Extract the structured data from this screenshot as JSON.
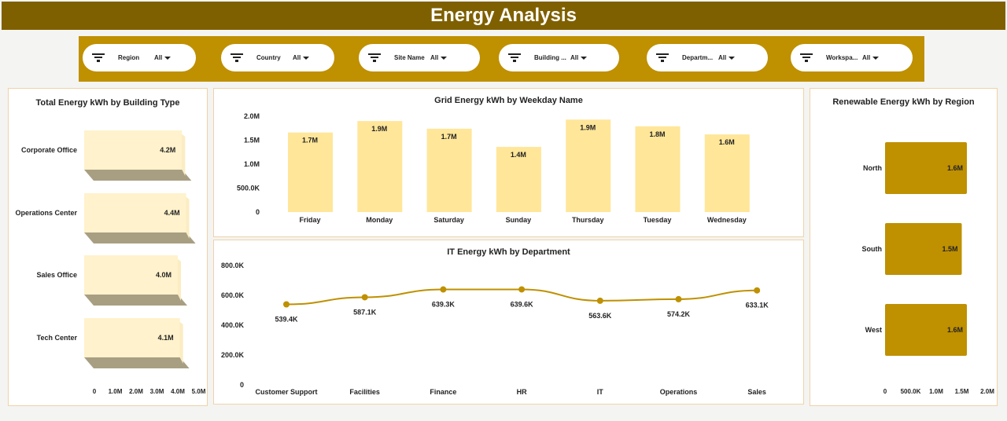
{
  "header": {
    "title": "Energy Analysis"
  },
  "filters": [
    {
      "label": "Region",
      "value": "All",
      "icon": "filter-icon"
    },
    {
      "label": "Country",
      "value": "All",
      "icon": "filter-icon"
    },
    {
      "label": "Site Name",
      "value": "All",
      "icon": "filter-icon"
    },
    {
      "label": "Building ...",
      "value": "All",
      "icon": "filter-icon"
    },
    {
      "label": "Departm...",
      "value": "All",
      "icon": "filter-icon"
    },
    {
      "label": "Workspa...",
      "value": "All",
      "icon": "filter-icon"
    }
  ],
  "colors": {
    "header": "#7f6000",
    "filterbar": "#bf9000",
    "bar_light": "#ffe699",
    "bar_3d": "#fff2cc",
    "accent": "#bf9000"
  },
  "chart_data": [
    {
      "id": "building",
      "type": "bar",
      "orientation": "horizontal",
      "style": "3d",
      "title": "Total Energy kWh by Building Type",
      "categories": [
        "Corporate Office",
        "Operations Center",
        "Sales Office",
        "Tech Center"
      ],
      "values": [
        4.2,
        4.4,
        4.0,
        4.1
      ],
      "data_labels": [
        "4.2M",
        "4.4M",
        "4.0M",
        "4.1M"
      ],
      "xlim": [
        0,
        5
      ],
      "xticks": [
        "0",
        "1.0M",
        "2.0M",
        "3.0M",
        "4.0M",
        "5.0M"
      ]
    },
    {
      "id": "grid",
      "type": "bar",
      "title": "Grid Energy kWh by Weekday Name",
      "categories": [
        "Friday",
        "Monday",
        "Saturday",
        "Sunday",
        "Thursday",
        "Tuesday",
        "Wednesday"
      ],
      "values": [
        1.66,
        1.9,
        1.74,
        1.36,
        1.93,
        1.79,
        1.62
      ],
      "data_labels": [
        "1.7M",
        "1.9M",
        "1.7M",
        "1.4M",
        "1.9M",
        "1.8M",
        "1.6M"
      ],
      "ylim": [
        0,
        2
      ],
      "yticks": [
        "0",
        "500.0K",
        "1.0M",
        "1.5M",
        "2.0M"
      ]
    },
    {
      "id": "it",
      "type": "line",
      "title": "IT Energy kWh by Department",
      "categories": [
        "Customer Support",
        "Facilities",
        "Finance",
        "HR",
        "IT",
        "Operations",
        "Sales"
      ],
      "values": [
        539.4,
        587.1,
        639.3,
        639.6,
        563.6,
        574.2,
        633.1
      ],
      "data_labels": [
        "539.4K",
        "587.1K",
        "639.3K",
        "639.6K",
        "563.6K",
        "574.2K",
        "633.1K"
      ],
      "ylim": [
        0,
        800
      ],
      "yticks": [
        "0",
        "200.0K",
        "400.0K",
        "600.0K",
        "800.0K"
      ]
    },
    {
      "id": "renew",
      "type": "bar",
      "orientation": "horizontal",
      "title": "Renewable Energy kWh by Region",
      "categories": [
        "North",
        "South",
        "West"
      ],
      "values": [
        1.6,
        1.5,
        1.6
      ],
      "data_labels": [
        "1.6M",
        "1.5M",
        "1.6M"
      ],
      "xlim": [
        0,
        2
      ],
      "xticks": [
        "0",
        "500.0K",
        "1.0M",
        "1.5M",
        "2.0M"
      ]
    }
  ]
}
